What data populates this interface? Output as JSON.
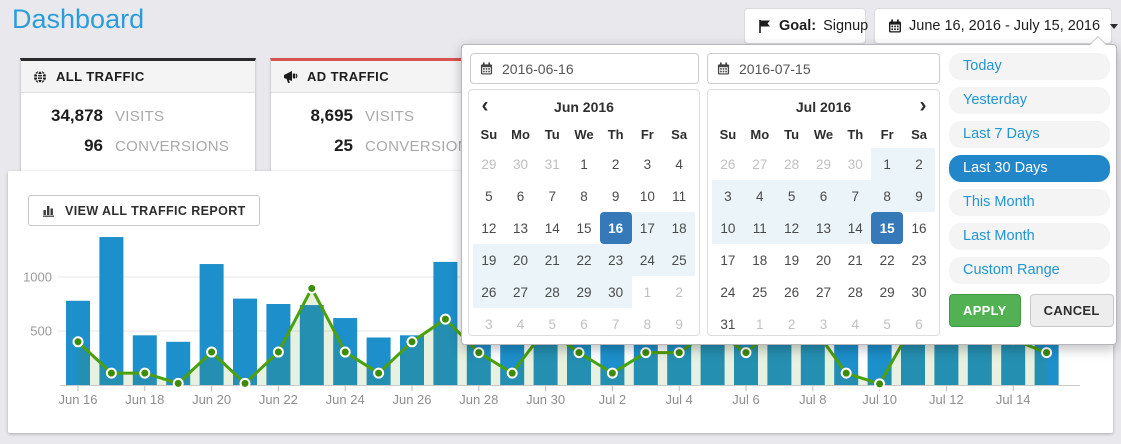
{
  "page": {
    "title": "Dashboard"
  },
  "header": {
    "goal_button": {
      "label": "Goal:",
      "value": "Signup"
    },
    "date_button": {
      "label": "June 16, 2016 - July 15, 2016"
    }
  },
  "cards": [
    {
      "title": "ALL TRAFFIC",
      "icon": "globe-icon",
      "accent_color": "#2b2b2b",
      "stats": [
        {
          "value": "34,878",
          "label": "VISITS"
        },
        {
          "value": "96",
          "label": "CONVERSIONS"
        }
      ]
    },
    {
      "title": "AD TRAFFIC",
      "icon": "megaphone-icon",
      "accent_color": "#d9534f",
      "stats": [
        {
          "value": "8,695",
          "label": "VISITS"
        },
        {
          "value": "25",
          "label": "CONVERSIONS"
        }
      ]
    }
  ],
  "traffic_report": {
    "button_label": "VIEW ALL TRAFFIC REPORT",
    "icon": "bar-chart-icon"
  },
  "chart_data": {
    "type": "bar",
    "x": [
      "Jun 16",
      "Jun 17",
      "Jun 18",
      "Jun 19",
      "Jun 20",
      "Jun 21",
      "Jun 22",
      "Jun 23",
      "Jun 24",
      "Jun 25",
      "Jun 26",
      "Jun 27",
      "Jun 28",
      "Jun 29",
      "Jun 30",
      "Jul 1",
      "Jul 2",
      "Jul 3",
      "Jul 4",
      "Jul 5",
      "Jul 6",
      "Jul 7",
      "Jul 8",
      "Jul 9",
      "Jul 10",
      "Jul 11",
      "Jul 12",
      "Jul 13",
      "Jul 14",
      "Jul 15"
    ],
    "x_tick_labels": [
      "Jun 16",
      "Jun 18",
      "Jun 20",
      "Jun 22",
      "Jun 24",
      "Jun 26",
      "Jun 28",
      "Jun 30",
      "Jul 2",
      "Jul 4",
      "Jul 6",
      "Jul 8",
      "Jul 10",
      "Jul 12",
      "Jul 14"
    ],
    "yticks": [
      500,
      1000
    ],
    "ylim": [
      0,
      1500
    ],
    "grid": true,
    "legend": false,
    "series": [
      {
        "name": "Visits",
        "type": "bar",
        "color": "#1d8fca",
        "values": [
          780,
          1370,
          460,
          400,
          1120,
          800,
          750,
          740,
          620,
          440,
          460,
          1140,
          620,
          700,
          820,
          650,
          380,
          700,
          620,
          760,
          820,
          700,
          650,
          600,
          700,
          820,
          760,
          700,
          820,
          900
        ]
      },
      {
        "name": "Conversions",
        "type": "line",
        "color": "#4ba00c",
        "marker_color": "#3e8b06",
        "values": [
          400,
          110,
          110,
          15,
          305,
          15,
          305,
          895,
          305,
          110,
          400,
          610,
          300,
          110,
          520,
          300,
          110,
          300,
          300,
          520,
          300,
          560,
          540,
          110,
          10,
          560,
          680,
          620,
          420,
          300
        ]
      }
    ]
  },
  "datepicker": {
    "start_date": "2016-06-16",
    "end_date": "2016-07-15",
    "weekdays": [
      "Su",
      "Mo",
      "Tu",
      "We",
      "Th",
      "Fr",
      "Sa"
    ],
    "months": [
      {
        "title": "Jun 2016",
        "nav": "prev",
        "nav_icon": "chevron-left-icon",
        "cells": [
          [
            29,
            "m"
          ],
          [
            30,
            "m"
          ],
          [
            31,
            "m"
          ],
          [
            1,
            ""
          ],
          [
            2,
            ""
          ],
          [
            3,
            ""
          ],
          [
            4,
            ""
          ],
          [
            5,
            ""
          ],
          [
            6,
            ""
          ],
          [
            7,
            ""
          ],
          [
            8,
            ""
          ],
          [
            9,
            ""
          ],
          [
            10,
            ""
          ],
          [
            11,
            ""
          ],
          [
            12,
            ""
          ],
          [
            13,
            ""
          ],
          [
            14,
            ""
          ],
          [
            15,
            ""
          ],
          [
            16,
            "s"
          ],
          [
            17,
            "r"
          ],
          [
            18,
            "r"
          ],
          [
            19,
            "r"
          ],
          [
            20,
            "r"
          ],
          [
            21,
            "r"
          ],
          [
            22,
            "r"
          ],
          [
            23,
            "r"
          ],
          [
            24,
            "r"
          ],
          [
            25,
            "r"
          ],
          [
            26,
            "r"
          ],
          [
            27,
            "r"
          ],
          [
            28,
            "r"
          ],
          [
            29,
            "r"
          ],
          [
            30,
            "r"
          ],
          [
            1,
            "m"
          ],
          [
            2,
            "m"
          ],
          [
            3,
            "m"
          ],
          [
            4,
            "m"
          ],
          [
            5,
            "m"
          ],
          [
            6,
            "m"
          ],
          [
            7,
            "m"
          ],
          [
            8,
            "m"
          ],
          [
            9,
            "m"
          ]
        ]
      },
      {
        "title": "Jul 2016",
        "nav": "next",
        "nav_icon": "chevron-right-icon",
        "cells": [
          [
            26,
            "m"
          ],
          [
            27,
            "m"
          ],
          [
            28,
            "m"
          ],
          [
            29,
            "m"
          ],
          [
            30,
            "m"
          ],
          [
            1,
            "r"
          ],
          [
            2,
            "r"
          ],
          [
            3,
            "r"
          ],
          [
            4,
            "r"
          ],
          [
            5,
            "r"
          ],
          [
            6,
            "r"
          ],
          [
            7,
            "r"
          ],
          [
            8,
            "r"
          ],
          [
            9,
            "r"
          ],
          [
            10,
            "r"
          ],
          [
            11,
            "r"
          ],
          [
            12,
            "r"
          ],
          [
            13,
            "r"
          ],
          [
            14,
            "r"
          ],
          [
            15,
            "s"
          ],
          [
            16,
            ""
          ],
          [
            17,
            ""
          ],
          [
            18,
            ""
          ],
          [
            19,
            ""
          ],
          [
            20,
            ""
          ],
          [
            21,
            ""
          ],
          [
            22,
            ""
          ],
          [
            23,
            ""
          ],
          [
            24,
            ""
          ],
          [
            25,
            ""
          ],
          [
            26,
            ""
          ],
          [
            27,
            ""
          ],
          [
            28,
            ""
          ],
          [
            29,
            ""
          ],
          [
            30,
            ""
          ],
          [
            31,
            ""
          ],
          [
            1,
            "m"
          ],
          [
            2,
            "m"
          ],
          [
            3,
            "m"
          ],
          [
            4,
            "m"
          ],
          [
            5,
            "m"
          ],
          [
            6,
            "m"
          ]
        ]
      }
    ],
    "ranges": [
      "Today",
      "Yesterday",
      "Last 7 Days",
      "Last 30 Days",
      "This Month",
      "Last Month",
      "Custom Range"
    ],
    "selected_range": "Last 30 Days",
    "apply_label": "APPLY",
    "cancel_label": "CANCEL",
    "colors": {
      "selected_day_bg": "#3579b8",
      "in_range_bg": "#ebf4f8",
      "active_range_bg": "#2187c8",
      "apply_bg": "#52b152"
    }
  }
}
